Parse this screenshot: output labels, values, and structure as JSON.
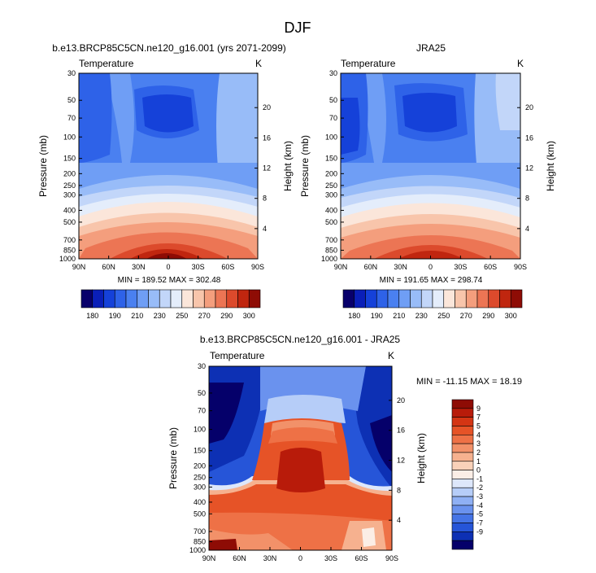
{
  "figure_title": "DJF",
  "chart_data": [
    {
      "type": "heatmap",
      "title": "b.e13.BRCP85C5CN.ne120_g16.001 (yrs 2071-2099)",
      "subtitle_left": "Temperature",
      "subtitle_right": "K",
      "ylabel": "Pressure (mb)",
      "ylabel_right": "Height (km)",
      "x_ticks": [
        "90N",
        "60N",
        "30N",
        "0",
        "30S",
        "60S",
        "90S"
      ],
      "pressure_ticks": [
        "30",
        "50",
        "70",
        "100",
        "150",
        "200",
        "250",
        "300",
        "400",
        "500",
        "700",
        "850",
        "1000"
      ],
      "height_ticks": [
        "20",
        "16",
        "12",
        "8",
        "4"
      ],
      "min_max_text": "MIN = 189.52  MAX = 302.48",
      "colorbar_labels": [
        "180",
        "190",
        "210",
        "230",
        "250",
        "270",
        "290",
        "300"
      ]
    },
    {
      "type": "heatmap",
      "title": "JRA25",
      "subtitle_left": "Temperature",
      "subtitle_right": "K",
      "ylabel": "Pressure (mb)",
      "ylabel_right": "Height (km)",
      "x_ticks": [
        "90N",
        "60N",
        "30N",
        "0",
        "30S",
        "60S",
        "90S"
      ],
      "pressure_ticks": [
        "30",
        "50",
        "70",
        "100",
        "150",
        "200",
        "250",
        "300",
        "400",
        "500",
        "700",
        "850",
        "1000"
      ],
      "height_ticks": [
        "20",
        "16",
        "12",
        "8",
        "4"
      ],
      "min_max_text": "MIN = 191.65  MAX = 298.74",
      "colorbar_labels": [
        "180",
        "190",
        "210",
        "230",
        "250",
        "270",
        "290",
        "300"
      ]
    },
    {
      "type": "heatmap",
      "title": "b.e13.BRCP85C5CN.ne120_g16.001 - JRA25",
      "subtitle_left": "Temperature",
      "subtitle_right": "K",
      "ylabel": "Pressure (mb)",
      "ylabel_right": "Height (km)",
      "x_ticks": [
        "90N",
        "60N",
        "30N",
        "0",
        "30S",
        "60S",
        "90S"
      ],
      "pressure_ticks": [
        "30",
        "50",
        "70",
        "100",
        "150",
        "200",
        "250",
        "300",
        "400",
        "500",
        "700",
        "850",
        "1000"
      ],
      "height_ticks": [
        "20",
        "16",
        "12",
        "8",
        "4"
      ],
      "min_max_text": "MIN = -11.15  MAX = 18.19",
      "colorbar_labels": [
        "9",
        "7",
        "5",
        "4",
        "3",
        "2",
        "1",
        "0",
        "-1",
        "-2",
        "-3",
        "-4",
        "-5",
        "-7",
        "-9"
      ]
    }
  ],
  "colors": {
    "abs_scale": [
      "#08006b",
      "#0a1fb8",
      "#1541d9",
      "#2e62e8",
      "#4a80f0",
      "#6f9ef5",
      "#98bcf8",
      "#c2d6f9",
      "#e4edfb",
      "#fbe6da",
      "#f8c5ab",
      "#f49e7d",
      "#ec7554",
      "#dc4a2c",
      "#c0260f",
      "#8e0c05"
    ],
    "diff_scale": [
      "#8e0c05",
      "#b81b0a",
      "#d43514",
      "#e65327",
      "#ee7146",
      "#f29169",
      "#f6b18f",
      "#f9d1b9",
      "#fbeee6",
      "#dde7fb",
      "#b6cdf8",
      "#8fb0f4",
      "#6a92ee",
      "#4574e6",
      "#2655d8",
      "#0d30b4",
      "#05006a"
    ]
  }
}
